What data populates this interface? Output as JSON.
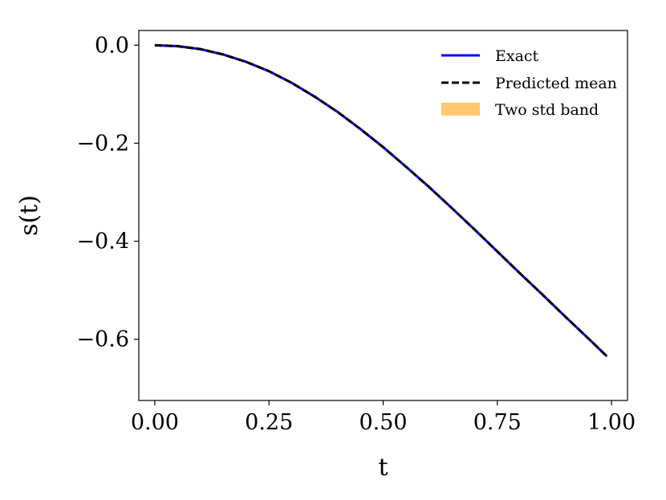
{
  "chart_data": {
    "type": "line",
    "title": "",
    "xlabel": "t",
    "ylabel": "s(t)",
    "xlim": [
      -0.035,
      1.035
    ],
    "ylim": [
      -0.725,
      0.03
    ],
    "x_ticks": [
      0.0,
      0.25,
      0.5,
      0.75,
      1.0
    ],
    "x_tick_labels": [
      "0.00",
      "0.25",
      "0.50",
      "0.75",
      "1.00"
    ],
    "y_ticks": [
      0.0,
      -0.2,
      -0.4,
      -0.6
    ],
    "y_tick_labels": [
      "0.0",
      "−0.2",
      "−0.4",
      "−0.6"
    ],
    "grid": false,
    "legend_position": "top-right",
    "x": [
      0.0,
      0.05,
      0.1,
      0.15,
      0.2,
      0.25,
      0.3,
      0.35,
      0.4,
      0.45,
      0.5,
      0.55,
      0.6,
      0.65,
      0.7,
      0.75,
      0.8,
      0.85,
      0.9,
      0.95,
      0.99
    ],
    "series": [
      {
        "name": "Exact",
        "style": "solid",
        "color": "#0000ff",
        "values": [
          0.0,
          -0.002,
          -0.008,
          -0.019,
          -0.034,
          -0.053,
          -0.077,
          -0.105,
          -0.136,
          -0.171,
          -0.208,
          -0.248,
          -0.289,
          -0.332,
          -0.376,
          -0.421,
          -0.466,
          -0.51,
          -0.555,
          -0.599,
          -0.635
        ]
      },
      {
        "name": "Predicted mean",
        "style": "dashed",
        "color": "#000000",
        "values": [
          0.0,
          -0.002,
          -0.008,
          -0.019,
          -0.034,
          -0.053,
          -0.077,
          -0.105,
          -0.136,
          -0.171,
          -0.208,
          -0.248,
          -0.289,
          -0.332,
          -0.376,
          -0.421,
          -0.466,
          -0.51,
          -0.555,
          -0.599,
          -0.635
        ]
      }
    ],
    "band": {
      "name": "Two std band",
      "color": "#ffc86e",
      "lower": [
        -0.003,
        -0.005,
        -0.011,
        -0.022,
        -0.037,
        -0.056,
        -0.08,
        -0.108,
        -0.139,
        -0.174,
        -0.211,
        -0.251,
        -0.292,
        -0.335,
        -0.379,
        -0.424,
        -0.469,
        -0.513,
        -0.558,
        -0.602,
        -0.638
      ],
      "upper": [
        0.003,
        0.001,
        -0.005,
        -0.016,
        -0.031,
        -0.05,
        -0.074,
        -0.102,
        -0.133,
        -0.168,
        -0.205,
        -0.245,
        -0.286,
        -0.329,
        -0.373,
        -0.418,
        -0.463,
        -0.507,
        -0.552,
        -0.596,
        -0.632
      ]
    }
  }
}
